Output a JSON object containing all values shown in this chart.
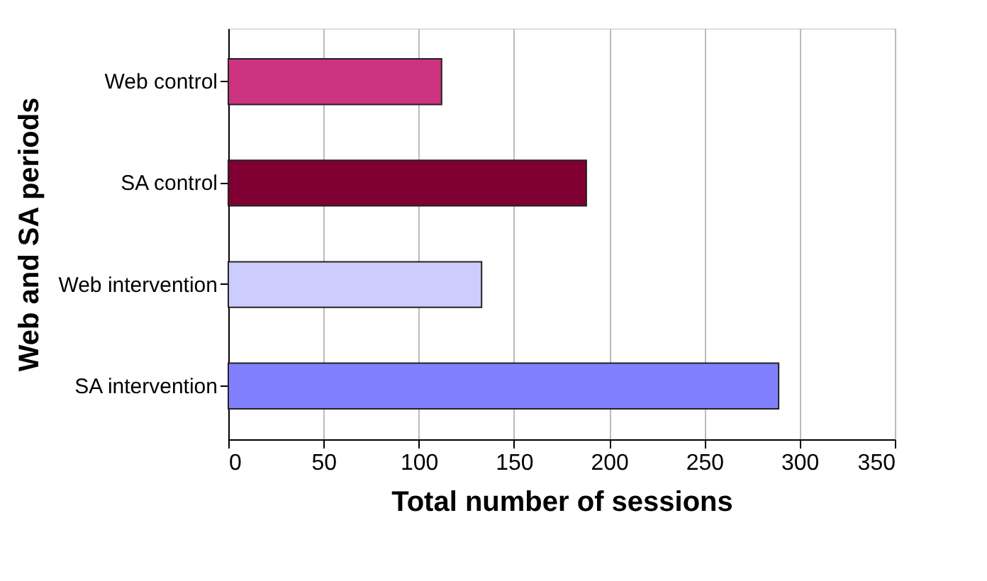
{
  "chart_data": {
    "type": "bar",
    "orientation": "horizontal",
    "xlabel": "Total number of sessions",
    "ylabel": "Web and SA periods",
    "categories": [
      "Web control",
      "SA control",
      "Web intervention",
      "SA intervention"
    ],
    "values": [
      112,
      188,
      133,
      289
    ],
    "colors": [
      "#cc3380",
      "#800033",
      "#ccccff",
      "#8080ff"
    ],
    "xlim": [
      0,
      350
    ],
    "xticks": [
      0,
      50,
      100,
      150,
      200,
      250,
      300,
      350
    ],
    "grid": "x"
  }
}
